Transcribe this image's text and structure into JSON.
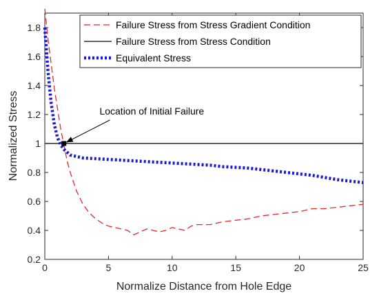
{
  "chart_data": {
    "type": "line",
    "xlabel": "Normalize Distance from Hole Edge",
    "ylabel": "Normalized Stress",
    "xlim": [
      0,
      25
    ],
    "ylim": [
      0.2,
      1.9
    ],
    "xticks": [
      0,
      5,
      10,
      15,
      20,
      25
    ],
    "yticks": [
      0.2,
      0.4,
      0.6,
      0.8,
      1,
      1.2,
      1.4,
      1.6,
      1.8
    ],
    "xtick_labels": [
      "0",
      "5",
      "10",
      "15",
      "20",
      "25"
    ],
    "ytick_labels": [
      "0.2",
      "0.4",
      "0.6",
      "0.8",
      "1",
      "1.2",
      "1.4",
      "1.6",
      "1.8"
    ],
    "grid": false,
    "legend_position": "top-right",
    "series": [
      {
        "name": "Failure Stress from Stress Gradient Condition",
        "color": "#e8262a",
        "style": "dashed",
        "x": [
          0,
          0.25,
          0.5,
          0.75,
          1.0,
          1.25,
          1.5,
          1.75,
          2.0,
          2.5,
          3.0,
          3.5,
          4.0,
          4.5,
          5.0,
          5.5,
          6.0,
          6.5,
          7.0,
          7.5,
          8.0,
          8.5,
          9.0,
          9.5,
          10.0,
          10.5,
          11.0,
          11.5,
          12.0,
          13.0,
          14.0,
          15.0,
          16.0,
          17.0,
          18.0,
          19.0,
          20.0,
          21.0,
          22.0,
          23.0,
          24.0,
          25.0
        ],
        "y": [
          1.93,
          1.72,
          1.55,
          1.38,
          1.24,
          1.1,
          0.99,
          0.88,
          0.8,
          0.67,
          0.58,
          0.52,
          0.48,
          0.45,
          0.43,
          0.42,
          0.41,
          0.4,
          0.37,
          0.39,
          0.41,
          0.4,
          0.39,
          0.4,
          0.42,
          0.41,
          0.4,
          0.43,
          0.44,
          0.44,
          0.46,
          0.47,
          0.48,
          0.5,
          0.51,
          0.52,
          0.53,
          0.55,
          0.55,
          0.56,
          0.57,
          0.58
        ]
      },
      {
        "name": "Failure Stress from Stress Condition",
        "color": "#000000",
        "style": "solid",
        "x": [
          0,
          25
        ],
        "y": [
          1,
          1
        ]
      },
      {
        "name": "Equivalent Stress",
        "color": "#1a1ad6",
        "style": "dotted",
        "x": [
          0,
          0.25,
          0.5,
          0.75,
          1.0,
          1.25,
          1.5,
          1.75,
          2.0,
          2.5,
          3.0,
          4.0,
          5.0,
          6.0,
          7.0,
          8.0,
          9.0,
          10.0,
          11.0,
          12.0,
          13.0,
          14.0,
          15.0,
          16.0,
          17.0,
          18.0,
          19.0,
          20.0,
          21.0,
          22.0,
          23.0,
          24.0,
          25.0
        ],
        "y": [
          1.8,
          1.5,
          1.28,
          1.13,
          1.04,
          0.99,
          0.96,
          0.94,
          0.92,
          0.91,
          0.9,
          0.895,
          0.89,
          0.885,
          0.88,
          0.875,
          0.87,
          0.865,
          0.86,
          0.855,
          0.85,
          0.84,
          0.835,
          0.83,
          0.82,
          0.81,
          0.8,
          0.79,
          0.78,
          0.765,
          0.75,
          0.74,
          0.73
        ]
      }
    ],
    "annotations": [
      {
        "text": "Location of Initial Failure",
        "arrow_to": {
          "x": 1.5,
          "y": 1.0
        },
        "text_at": {
          "x": 4.3,
          "y": 1.2
        }
      }
    ],
    "markers": [
      {
        "x": 1.5,
        "y": 1.0,
        "color": "#000000",
        "shape": "square"
      }
    ]
  }
}
